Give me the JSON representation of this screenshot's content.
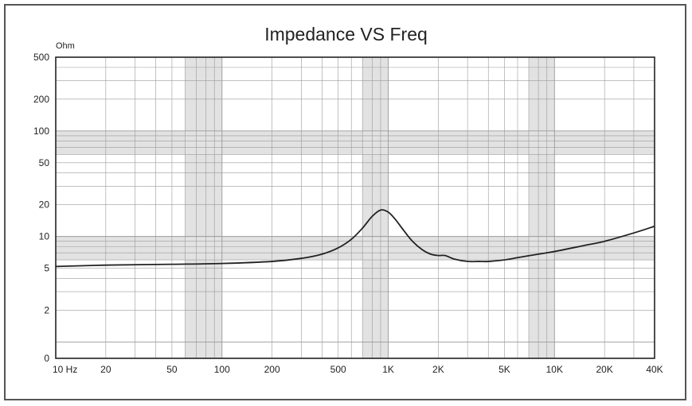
{
  "chart_data": {
    "type": "line",
    "title": "Impedance VS Freq",
    "ylabel": "Ohm",
    "xlabel": "",
    "x_scale": "log",
    "y_scale": "log",
    "xlim": [
      10,
      40000
    ],
    "ylim": [
      0.7,
      500
    ],
    "x_ticks": [
      {
        "value": 10,
        "label": "10 Hz"
      },
      {
        "value": 20,
        "label": "20"
      },
      {
        "value": 50,
        "label": "50"
      },
      {
        "value": 100,
        "label": "100"
      },
      {
        "value": 200,
        "label": "200"
      },
      {
        "value": 500,
        "label": "500"
      },
      {
        "value": 1000,
        "label": "1K"
      },
      {
        "value": 2000,
        "label": "2K"
      },
      {
        "value": 5000,
        "label": "5K"
      },
      {
        "value": 10000,
        "label": "10K"
      },
      {
        "value": 20000,
        "label": "20K"
      },
      {
        "value": 40000,
        "label": "40K"
      }
    ],
    "y_ticks": [
      {
        "value": 500,
        "label": "500"
      },
      {
        "value": 200,
        "label": "200"
      },
      {
        "value": 100,
        "label": "100"
      },
      {
        "value": 50,
        "label": "50"
      },
      {
        "value": 20,
        "label": "20"
      },
      {
        "value": 10,
        "label": "10"
      },
      {
        "value": 5,
        "label": "5"
      },
      {
        "value": 2,
        "label": "2"
      },
      {
        "value": 0.7,
        "label": "0"
      }
    ],
    "grid": true,
    "series": [
      {
        "x": [
          10,
          20,
          50,
          100,
          200,
          300,
          400,
          500,
          600,
          700,
          800,
          900,
          1000,
          1100,
          1250,
          1400,
          1600,
          1800,
          2000,
          2200,
          2500,
          3000,
          3500,
          4000,
          5000,
          6000,
          8000,
          10000,
          15000,
          20000,
          30000,
          40000
        ],
        "y": [
          5.2,
          5.35,
          5.45,
          5.55,
          5.8,
          6.2,
          6.8,
          7.8,
          9.4,
          12.0,
          15.5,
          17.8,
          17.0,
          14.6,
          11.2,
          9.0,
          7.5,
          6.8,
          6.6,
          6.6,
          6.1,
          5.8,
          5.8,
          5.8,
          6.0,
          6.3,
          6.8,
          7.2,
          8.2,
          9.0,
          10.8,
          12.5
        ]
      }
    ],
    "colors": {
      "line": "#222222",
      "grid": "#9a9a9a",
      "band": "#e2e2e2"
    }
  }
}
